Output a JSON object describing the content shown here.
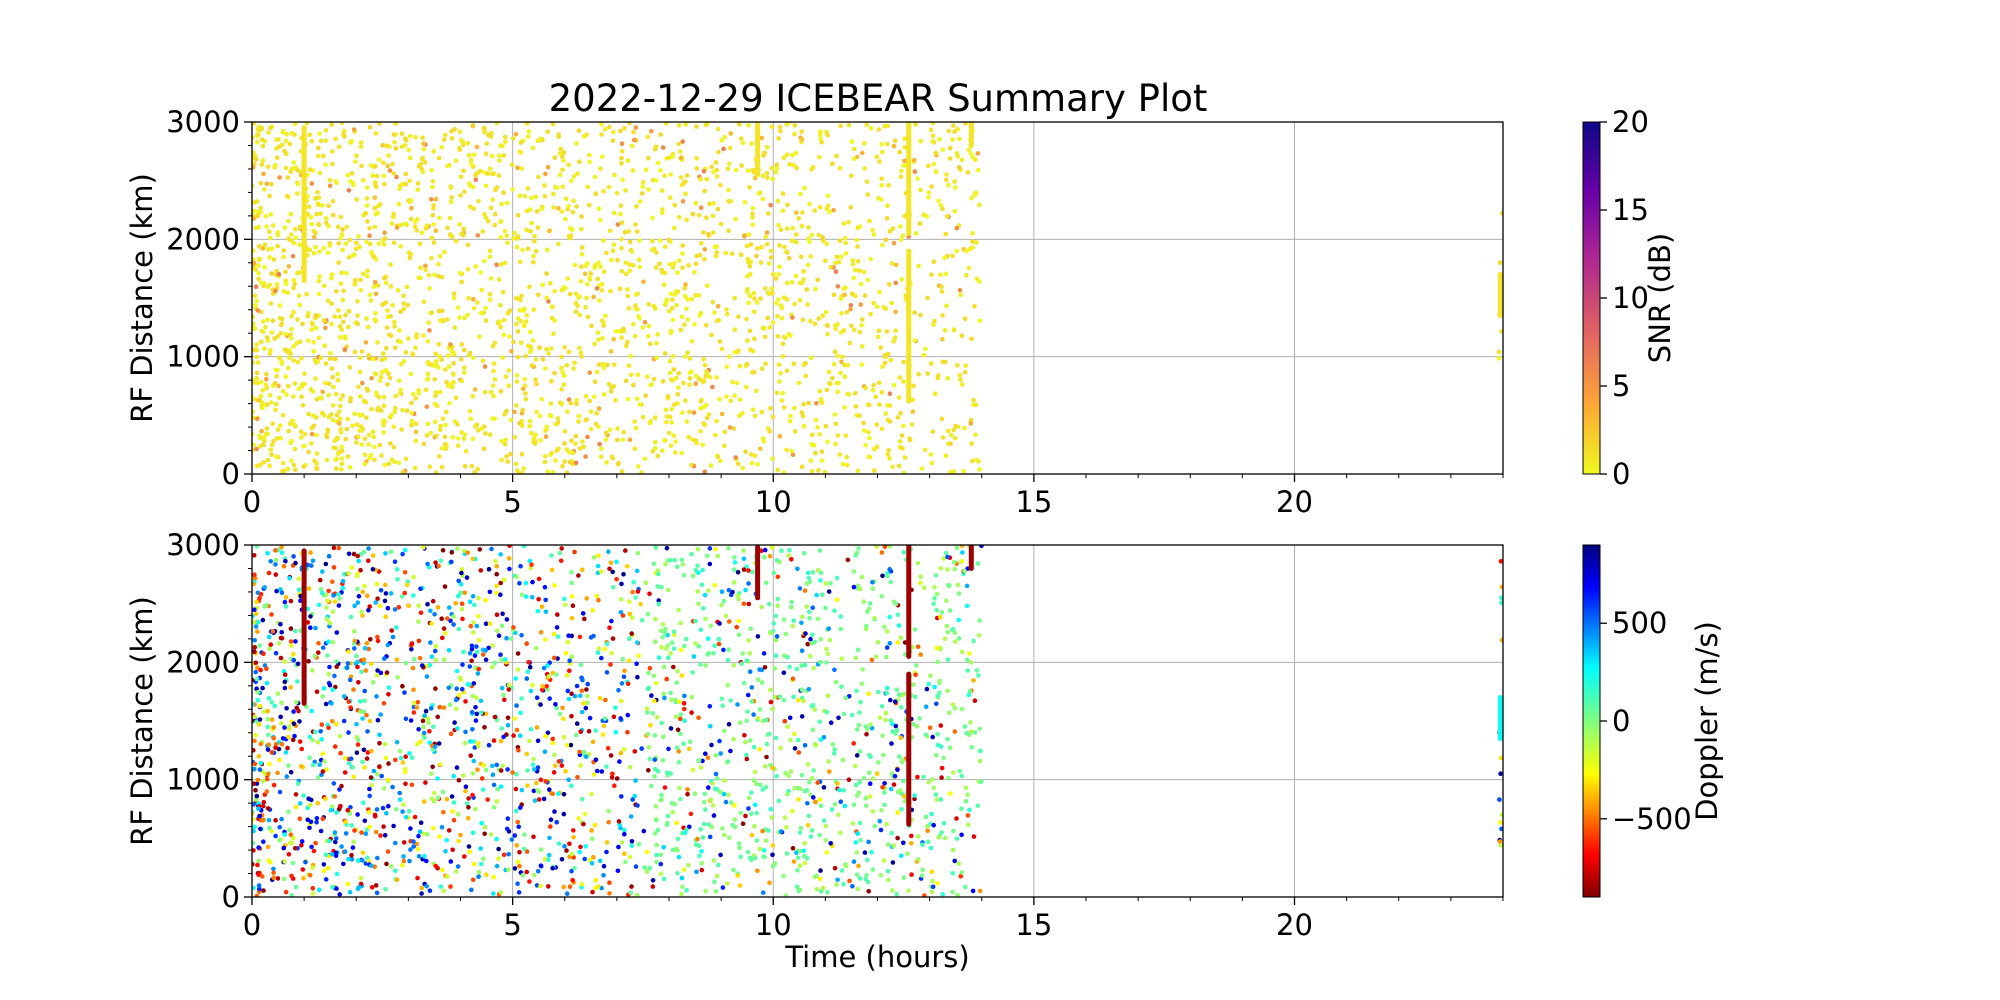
{
  "figure": {
    "title": "2022-12-29 ICEBEAR Summary Plot"
  },
  "chart_data": [
    {
      "type": "scatter",
      "panel": "top",
      "title": "2022-12-29 ICEBEAR Summary Plot",
      "xlabel": "",
      "ylabel": "RF Distance (km)",
      "xlim": [
        0,
        24
      ],
      "ylim": [
        0,
        3000
      ],
      "xticks": [
        0,
        5,
        10,
        15,
        20
      ],
      "yticks": [
        0,
        1000,
        2000,
        3000
      ],
      "grid": true,
      "color_variable": {
        "label": "SNR (dB)",
        "colormap": "plasma_r",
        "range": [
          0,
          20
        ],
        "ticks": [
          0,
          5,
          10,
          15,
          20
        ],
        "tick_labels": [
          "0",
          "5",
          "10",
          "15",
          "20"
        ]
      },
      "scatter_summary": {
        "time_coverage_hours": [
          [
            0,
            14
          ],
          [
            23.9,
            24
          ]
        ],
        "point_color_typical": "#f5e51f",
        "dense_region_hours": [
          0,
          8
        ]
      },
      "streaks": [
        {
          "x": 1.0,
          "y_from": 1650,
          "y_to": 2950,
          "snr": 1
        },
        {
          "x": 9.7,
          "y_from": 2550,
          "y_to": 2980,
          "snr": 1
        },
        {
          "x": 12.6,
          "y_from": 2050,
          "y_to": 2990,
          "snr": 1
        },
        {
          "x": 12.6,
          "y_from": 620,
          "y_to": 1900,
          "snr": 1
        },
        {
          "x": 13.8,
          "y_from": 2800,
          "y_to": 2990,
          "snr": 1
        },
        {
          "x": 23.95,
          "y_from": 1350,
          "y_to": 1700,
          "snr": 1
        }
      ]
    },
    {
      "type": "scatter",
      "panel": "bottom",
      "title": "",
      "xlabel": "Time (hours)",
      "ylabel": "RF Distance (km)",
      "xlim": [
        0,
        24
      ],
      "ylim": [
        0,
        3000
      ],
      "xticks": [
        0,
        5,
        10,
        15,
        20
      ],
      "yticks": [
        0,
        1000,
        2000,
        3000
      ],
      "grid": true,
      "color_variable": {
        "label": "Doppler (m/s)",
        "colormap": "jet_r",
        "range": [
          -900,
          900
        ],
        "ticks": [
          500,
          0,
          -500
        ],
        "tick_labels": [
          "500",
          "0",
          "−500"
        ]
      },
      "scatter_summary": {
        "time_coverage_hours": [
          [
            0,
            14
          ],
          [
            23.9,
            24
          ]
        ],
        "doppler_mixed_hours": [
          0,
          7.5
        ],
        "doppler_mostly_green_hours": [
          7.5,
          14
        ]
      },
      "streaks": [
        {
          "x": 1.0,
          "y_from": 1650,
          "y_to": 2950,
          "doppler": -850
        },
        {
          "x": 9.7,
          "y_from": 2550,
          "y_to": 2980,
          "doppler": -850
        },
        {
          "x": 12.6,
          "y_from": 2050,
          "y_to": 2990,
          "doppler": -850
        },
        {
          "x": 12.6,
          "y_from": 620,
          "y_to": 1900,
          "doppler": -850
        },
        {
          "x": 13.8,
          "y_from": 2800,
          "y_to": 2990,
          "doppler": -850
        },
        {
          "x": 23.95,
          "y_from": 1350,
          "y_to": 1700,
          "doppler": 250
        }
      ]
    }
  ]
}
